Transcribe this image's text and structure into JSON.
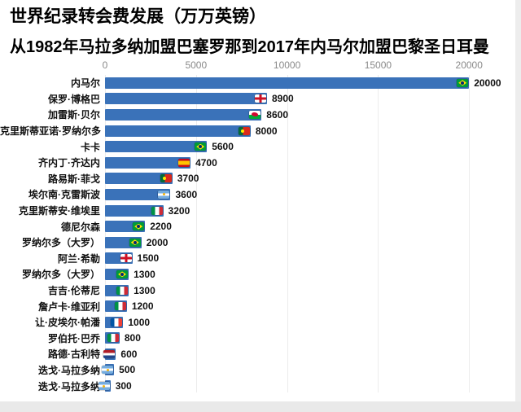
{
  "header": {
    "title": "世界纪录转会费发展（万万英镑）",
    "subtitle": "从1982年马拉多纳加盟巴塞罗那到2017年内马尔加盟巴黎圣日耳曼"
  },
  "chart_data": {
    "type": "bar",
    "orientation": "horizontal",
    "title": "世界纪录转会费发展（万万英镑）",
    "subtitle": "从1982年马拉多纳加盟巴塞罗那到2017年内马尔加盟巴黎圣日耳曼",
    "xlim": [
      0,
      20000
    ],
    "xticks": [
      0,
      5000,
      10000,
      15000,
      20000
    ],
    "axis_position": "top",
    "grid": "faint-vertical",
    "legend": "none",
    "bar_color": "#3a72b9",
    "players": [
      {
        "name": "内马尔",
        "value": 20000,
        "flag": "brazil"
      },
      {
        "name": "保罗·博格巴",
        "value": 8900,
        "flag": "england"
      },
      {
        "name": "加雷斯·贝尔",
        "value": 8600,
        "flag": "wales"
      },
      {
        "name": "克里斯蒂亚诺·罗纳尔多",
        "value": 8000,
        "flag": "portugal"
      },
      {
        "name": "卡卡",
        "value": 5600,
        "flag": "brazil"
      },
      {
        "name": "齐内丁·齐达内",
        "value": 4700,
        "flag": "spain"
      },
      {
        "name": "路易斯·菲戈",
        "value": 3700,
        "flag": "portugal"
      },
      {
        "name": "埃尔南·克雷斯波",
        "value": 3600,
        "flag": "argentina"
      },
      {
        "name": "克里斯蒂安·维埃里",
        "value": 3200,
        "flag": "italy"
      },
      {
        "name": "德尼尔森",
        "value": 2200,
        "flag": "brazil"
      },
      {
        "name": "罗纳尔多（大罗）",
        "value": 2000,
        "flag": "brazil"
      },
      {
        "name": "阿兰·希勒",
        "value": 1500,
        "flag": "england"
      },
      {
        "name": "罗纳尔多（大罗）",
        "value": 1300,
        "flag": "brazil"
      },
      {
        "name": "吉吉·伦蒂尼",
        "value": 1300,
        "flag": "italy"
      },
      {
        "name": "詹卢卡·维亚利",
        "value": 1200,
        "flag": "italy"
      },
      {
        "name": "让·皮埃尔·帕潘",
        "value": 1000,
        "flag": "france"
      },
      {
        "name": "罗伯托·巴乔",
        "value": 800,
        "flag": "italy"
      },
      {
        "name": "路德·古利特",
        "value": 600,
        "flag": "netherlands"
      },
      {
        "name": "迭戈·马拉多纳",
        "value": 500,
        "flag": "argentina"
      },
      {
        "name": "迭戈·马拉多纳",
        "value": 300,
        "flag": "argentina"
      }
    ]
  }
}
